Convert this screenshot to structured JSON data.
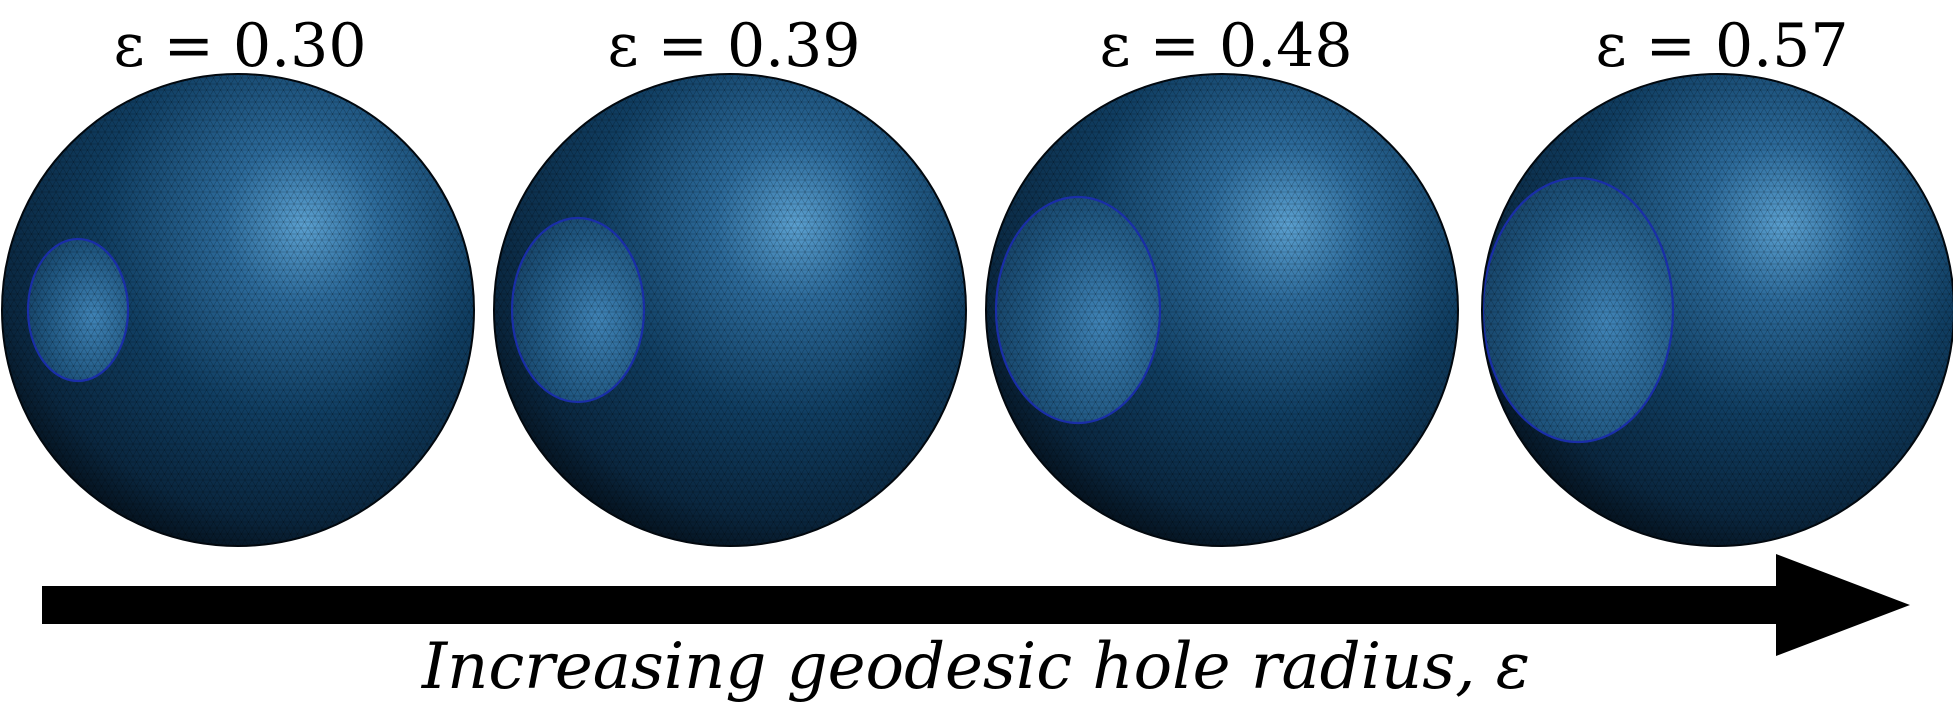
{
  "panels": [
    {
      "epsilon": "ε = 0.30"
    },
    {
      "epsilon": "ε = 0.39"
    },
    {
      "epsilon": "ε = 0.48"
    },
    {
      "epsilon": "ε = 0.57"
    }
  ],
  "caption": "Increasing geodesic hole radius, ε",
  "colors": {
    "sphere_base": "#0f3a5c",
    "sphere_highlight": "#4f93c4",
    "sphere_shadow": "#05131f",
    "hole_rim": "#1a2ea8",
    "mesh_line": "#000000",
    "arrow": "#000000"
  }
}
